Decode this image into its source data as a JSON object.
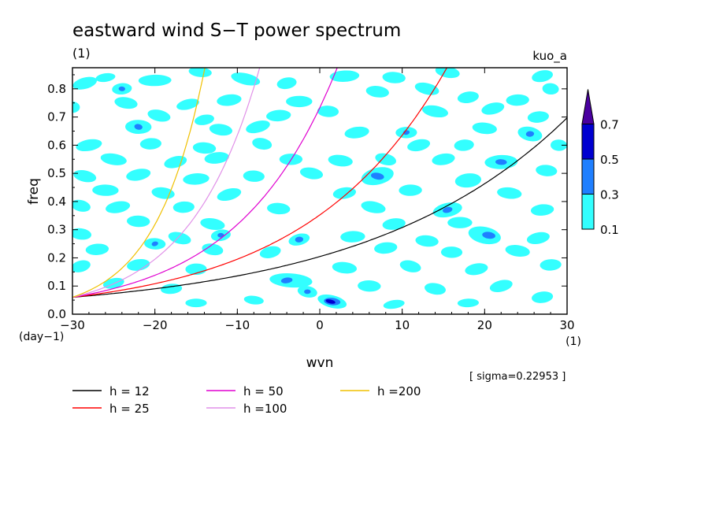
{
  "chart_data": {
    "type": "heatmap",
    "title": "eastward wind S−T power spectrum",
    "title_unit": "(1)",
    "subtitle_right": "kuo_a",
    "xlabel": "wvn",
    "xlabel_unit": "(1)",
    "ylabel": "freq",
    "ylabel_unit": "(day−1)",
    "xlim": [
      -30,
      30
    ],
    "ylim": [
      0.0,
      0.875
    ],
    "x_ticks": [
      -30,
      -20,
      -10,
      0,
      10,
      20,
      30
    ],
    "x_tick_labels": [
      "−30",
      "−20",
      "−10",
      "0",
      "10",
      "20",
      "30"
    ],
    "y_ticks": [
      0.0,
      0.1,
      0.2,
      0.3,
      0.4,
      0.5,
      0.6,
      0.7,
      0.8
    ],
    "y_tick_labels": [
      "0.0",
      "0.1",
      "0.2",
      "0.3",
      "0.4",
      "0.5",
      "0.6",
      "0.7",
      "0.8"
    ],
    "contour_levels": [
      0.1,
      0.3,
      0.5,
      0.7
    ],
    "colorbar_labels": [
      "0.1",
      "0.3",
      "0.5",
      "0.7"
    ],
    "colorbar_colors": [
      "#33ffff",
      "#1f7fff",
      "#0000d0",
      "#4a00a0"
    ],
    "sigma_text": "[ sigma=0.22953 ]",
    "dispersion_curves": [
      {
        "name": "h = 12",
        "h": 12,
        "color": "#000000"
      },
      {
        "name": "h = 25",
        "h": 25,
        "color": "#ff0000"
      },
      {
        "name": "h = 50",
        "h": 50,
        "color": "#e000d0"
      },
      {
        "name": "h =100",
        "h": 100,
        "color": "#e090e8"
      },
      {
        "name": "h =200",
        "h": 200,
        "color": "#f0c000"
      }
    ],
    "blobs": [
      {
        "x": -28.5,
        "y": 0.82,
        "rx": 1.5,
        "ry": 0.02,
        "l": 1
      },
      {
        "x": -26,
        "y": 0.84,
        "rx": 1.2,
        "ry": 0.015,
        "l": 1
      },
      {
        "x": -20,
        "y": 0.83,
        "rx": 2.0,
        "ry": 0.02,
        "l": 1
      },
      {
        "x": -14.5,
        "y": 0.86,
        "rx": 1.4,
        "ry": 0.018,
        "l": 1
      },
      {
        "x": -9,
        "y": 0.835,
        "rx": 1.8,
        "ry": 0.02,
        "l": 1
      },
      {
        "x": -4,
        "y": 0.82,
        "rx": 1.2,
        "ry": 0.02,
        "l": 1
      },
      {
        "x": 3,
        "y": 0.845,
        "rx": 1.8,
        "ry": 0.02,
        "l": 1
      },
      {
        "x": 9,
        "y": 0.84,
        "rx": 1.4,
        "ry": 0.02,
        "l": 1
      },
      {
        "x": 15.5,
        "y": 0.86,
        "rx": 1.5,
        "ry": 0.02,
        "l": 1
      },
      {
        "x": 27,
        "y": 0.845,
        "rx": 1.3,
        "ry": 0.02,
        "l": 1
      },
      {
        "x": -24,
        "y": 0.8,
        "rx": 1.2,
        "ry": 0.02,
        "l": 1
      },
      {
        "x": -24,
        "y": 0.8,
        "rx": 0.4,
        "ry": 0.008,
        "l": 2
      },
      {
        "x": -30,
        "y": 0.735,
        "rx": 0.9,
        "ry": 0.02,
        "l": 1
      },
      {
        "x": -23.5,
        "y": 0.75,
        "rx": 1.4,
        "ry": 0.02,
        "l": 1
      },
      {
        "x": -16,
        "y": 0.745,
        "rx": 1.4,
        "ry": 0.018,
        "l": 1
      },
      {
        "x": -11,
        "y": 0.76,
        "rx": 1.5,
        "ry": 0.02,
        "l": 1
      },
      {
        "x": -2.5,
        "y": 0.755,
        "rx": 1.6,
        "ry": 0.02,
        "l": 1
      },
      {
        "x": 7,
        "y": 0.79,
        "rx": 1.4,
        "ry": 0.02,
        "l": 1
      },
      {
        "x": 13,
        "y": 0.8,
        "rx": 1.5,
        "ry": 0.02,
        "l": 1
      },
      {
        "x": 18,
        "y": 0.77,
        "rx": 1.3,
        "ry": 0.02,
        "l": 1
      },
      {
        "x": 24,
        "y": 0.76,
        "rx": 1.4,
        "ry": 0.02,
        "l": 1
      },
      {
        "x": 28,
        "y": 0.8,
        "rx": 1.0,
        "ry": 0.02,
        "l": 1
      },
      {
        "x": -19.5,
        "y": 0.705,
        "rx": 1.4,
        "ry": 0.02,
        "l": 1
      },
      {
        "x": -14,
        "y": 0.69,
        "rx": 1.2,
        "ry": 0.018,
        "l": 1
      },
      {
        "x": -5,
        "y": 0.705,
        "rx": 1.5,
        "ry": 0.02,
        "l": 1
      },
      {
        "x": 1,
        "y": 0.72,
        "rx": 1.3,
        "ry": 0.02,
        "l": 1
      },
      {
        "x": 14,
        "y": 0.72,
        "rx": 1.6,
        "ry": 0.02,
        "l": 1
      },
      {
        "x": 21,
        "y": 0.73,
        "rx": 1.4,
        "ry": 0.02,
        "l": 1
      },
      {
        "x": 26.5,
        "y": 0.7,
        "rx": 1.3,
        "ry": 0.02,
        "l": 1
      },
      {
        "x": -22,
        "y": 0.665,
        "rx": 1.6,
        "ry": 0.025,
        "l": 1
      },
      {
        "x": -22,
        "y": 0.665,
        "rx": 0.5,
        "ry": 0.01,
        "l": 2
      },
      {
        "x": -12,
        "y": 0.655,
        "rx": 1.4,
        "ry": 0.02,
        "l": 1
      },
      {
        "x": -7.5,
        "y": 0.665,
        "rx": 1.5,
        "ry": 0.02,
        "l": 1
      },
      {
        "x": 4.5,
        "y": 0.645,
        "rx": 1.5,
        "ry": 0.02,
        "l": 1
      },
      {
        "x": 10.5,
        "y": 0.645,
        "rx": 1.3,
        "ry": 0.02,
        "l": 1
      },
      {
        "x": 10.5,
        "y": 0.645,
        "rx": 0.4,
        "ry": 0.008,
        "l": 2
      },
      {
        "x": 20,
        "y": 0.66,
        "rx": 1.5,
        "ry": 0.02,
        "l": 1
      },
      {
        "x": 25.5,
        "y": 0.64,
        "rx": 1.5,
        "ry": 0.025,
        "l": 1
      },
      {
        "x": 25.5,
        "y": 0.64,
        "rx": 0.5,
        "ry": 0.01,
        "l": 2
      },
      {
        "x": -28,
        "y": 0.6,
        "rx": 1.6,
        "ry": 0.02,
        "l": 1
      },
      {
        "x": -20.5,
        "y": 0.605,
        "rx": 1.3,
        "ry": 0.02,
        "l": 1
      },
      {
        "x": -14,
        "y": 0.59,
        "rx": 1.4,
        "ry": 0.02,
        "l": 1
      },
      {
        "x": -7,
        "y": 0.605,
        "rx": 1.2,
        "ry": 0.02,
        "l": 1
      },
      {
        "x": 12,
        "y": 0.6,
        "rx": 1.4,
        "ry": 0.02,
        "l": 1
      },
      {
        "x": 17.5,
        "y": 0.6,
        "rx": 1.2,
        "ry": 0.02,
        "l": 1
      },
      {
        "x": 29,
        "y": 0.6,
        "rx": 1.0,
        "ry": 0.02,
        "l": 1
      },
      {
        "x": -25,
        "y": 0.55,
        "rx": 1.6,
        "ry": 0.02,
        "l": 1
      },
      {
        "x": -17.5,
        "y": 0.54,
        "rx": 1.4,
        "ry": 0.02,
        "l": 1
      },
      {
        "x": -12.5,
        "y": 0.555,
        "rx": 1.5,
        "ry": 0.02,
        "l": 1
      },
      {
        "x": -3.5,
        "y": 0.55,
        "rx": 1.4,
        "ry": 0.02,
        "l": 1
      },
      {
        "x": 2.5,
        "y": 0.545,
        "rx": 1.5,
        "ry": 0.02,
        "l": 1
      },
      {
        "x": 8,
        "y": 0.55,
        "rx": 1.3,
        "ry": 0.02,
        "l": 1
      },
      {
        "x": 15,
        "y": 0.55,
        "rx": 1.4,
        "ry": 0.02,
        "l": 1
      },
      {
        "x": 22,
        "y": 0.54,
        "rx": 2.0,
        "ry": 0.025,
        "l": 1
      },
      {
        "x": 22,
        "y": 0.54,
        "rx": 0.7,
        "ry": 0.01,
        "l": 2
      },
      {
        "x": 27.5,
        "y": 0.51,
        "rx": 1.3,
        "ry": 0.02,
        "l": 1
      },
      {
        "x": -28.5,
        "y": 0.49,
        "rx": 1.4,
        "ry": 0.02,
        "l": 1
      },
      {
        "x": -22,
        "y": 0.495,
        "rx": 1.5,
        "ry": 0.02,
        "l": 1
      },
      {
        "x": -15,
        "y": 0.48,
        "rx": 1.6,
        "ry": 0.02,
        "l": 1
      },
      {
        "x": -8,
        "y": 0.49,
        "rx": 1.3,
        "ry": 0.02,
        "l": 1
      },
      {
        "x": -1,
        "y": 0.5,
        "rx": 1.4,
        "ry": 0.02,
        "l": 1
      },
      {
        "x": 7,
        "y": 0.49,
        "rx": 2.0,
        "ry": 0.03,
        "l": 1
      },
      {
        "x": 7,
        "y": 0.49,
        "rx": 0.8,
        "ry": 0.012,
        "l": 2
      },
      {
        "x": 18,
        "y": 0.475,
        "rx": 1.6,
        "ry": 0.025,
        "l": 1
      },
      {
        "x": -26,
        "y": 0.44,
        "rx": 1.6,
        "ry": 0.02,
        "l": 1
      },
      {
        "x": -19,
        "y": 0.43,
        "rx": 1.4,
        "ry": 0.02,
        "l": 1
      },
      {
        "x": -11,
        "y": 0.425,
        "rx": 1.5,
        "ry": 0.02,
        "l": 1
      },
      {
        "x": 3,
        "y": 0.43,
        "rx": 1.4,
        "ry": 0.02,
        "l": 1
      },
      {
        "x": 11,
        "y": 0.44,
        "rx": 1.4,
        "ry": 0.02,
        "l": 1
      },
      {
        "x": 23,
        "y": 0.43,
        "rx": 1.5,
        "ry": 0.02,
        "l": 1
      },
      {
        "x": -29,
        "y": 0.385,
        "rx": 1.2,
        "ry": 0.02,
        "l": 1
      },
      {
        "x": -24.5,
        "y": 0.38,
        "rx": 1.5,
        "ry": 0.02,
        "l": 1
      },
      {
        "x": -16.5,
        "y": 0.38,
        "rx": 1.3,
        "ry": 0.02,
        "l": 1
      },
      {
        "x": -5,
        "y": 0.375,
        "rx": 1.4,
        "ry": 0.02,
        "l": 1
      },
      {
        "x": 6.5,
        "y": 0.38,
        "rx": 1.5,
        "ry": 0.02,
        "l": 1
      },
      {
        "x": 15.5,
        "y": 0.37,
        "rx": 1.8,
        "ry": 0.025,
        "l": 1
      },
      {
        "x": 15.5,
        "y": 0.37,
        "rx": 0.6,
        "ry": 0.01,
        "l": 2
      },
      {
        "x": 27,
        "y": 0.37,
        "rx": 1.4,
        "ry": 0.02,
        "l": 1
      },
      {
        "x": -22,
        "y": 0.33,
        "rx": 1.4,
        "ry": 0.02,
        "l": 1
      },
      {
        "x": -13,
        "y": 0.32,
        "rx": 1.5,
        "ry": 0.02,
        "l": 1
      },
      {
        "x": -2.5,
        "y": 0.265,
        "rx": 1.3,
        "ry": 0.02,
        "l": 1
      },
      {
        "x": -2.5,
        "y": 0.265,
        "rx": 0.5,
        "ry": 0.01,
        "l": 2
      },
      {
        "x": 9,
        "y": 0.32,
        "rx": 1.4,
        "ry": 0.02,
        "l": 1
      },
      {
        "x": 17,
        "y": 0.325,
        "rx": 1.5,
        "ry": 0.02,
        "l": 1
      },
      {
        "x": -29,
        "y": 0.285,
        "rx": 1.3,
        "ry": 0.02,
        "l": 1
      },
      {
        "x": -17,
        "y": 0.27,
        "rx": 1.4,
        "ry": 0.02,
        "l": 1
      },
      {
        "x": -12,
        "y": 0.28,
        "rx": 1.2,
        "ry": 0.02,
        "l": 1
      },
      {
        "x": -12,
        "y": 0.28,
        "rx": 0.4,
        "ry": 0.008,
        "l": 2
      },
      {
        "x": 4,
        "y": 0.275,
        "rx": 1.5,
        "ry": 0.02,
        "l": 1
      },
      {
        "x": 13,
        "y": 0.26,
        "rx": 1.4,
        "ry": 0.02,
        "l": 1
      },
      {
        "x": 20,
        "y": 0.28,
        "rx": 2.0,
        "ry": 0.03,
        "l": 1
      },
      {
        "x": 20.5,
        "y": 0.28,
        "rx": 0.8,
        "ry": 0.012,
        "l": 2
      },
      {
        "x": 26.5,
        "y": 0.27,
        "rx": 1.4,
        "ry": 0.02,
        "l": 1
      },
      {
        "x": -27,
        "y": 0.23,
        "rx": 1.4,
        "ry": 0.02,
        "l": 1
      },
      {
        "x": -20,
        "y": 0.25,
        "rx": 1.3,
        "ry": 0.02,
        "l": 1
      },
      {
        "x": -20,
        "y": 0.25,
        "rx": 0.4,
        "ry": 0.008,
        "l": 2
      },
      {
        "x": -13,
        "y": 0.23,
        "rx": 1.3,
        "ry": 0.02,
        "l": 1
      },
      {
        "x": -6,
        "y": 0.22,
        "rx": 1.3,
        "ry": 0.02,
        "l": 1
      },
      {
        "x": 8,
        "y": 0.235,
        "rx": 1.4,
        "ry": 0.02,
        "l": 1
      },
      {
        "x": 16,
        "y": 0.22,
        "rx": 1.3,
        "ry": 0.02,
        "l": 1
      },
      {
        "x": 24,
        "y": 0.225,
        "rx": 1.5,
        "ry": 0.02,
        "l": 1
      },
      {
        "x": -29,
        "y": 0.17,
        "rx": 1.2,
        "ry": 0.02,
        "l": 1
      },
      {
        "x": -22,
        "y": 0.175,
        "rx": 1.4,
        "ry": 0.02,
        "l": 1
      },
      {
        "x": -15,
        "y": 0.16,
        "rx": 1.3,
        "ry": 0.02,
        "l": 1
      },
      {
        "x": 3,
        "y": 0.165,
        "rx": 1.5,
        "ry": 0.02,
        "l": 1
      },
      {
        "x": 11,
        "y": 0.17,
        "rx": 1.3,
        "ry": 0.02,
        "l": 1
      },
      {
        "x": 19,
        "y": 0.16,
        "rx": 1.4,
        "ry": 0.02,
        "l": 1
      },
      {
        "x": 28,
        "y": 0.175,
        "rx": 1.3,
        "ry": 0.02,
        "l": 1
      },
      {
        "x": -3.5,
        "y": 0.12,
        "rx": 2.6,
        "ry": 0.025,
        "l": 1
      },
      {
        "x": -4,
        "y": 0.12,
        "rx": 0.7,
        "ry": 0.01,
        "l": 2
      },
      {
        "x": -1.5,
        "y": 0.08,
        "rx": 1.2,
        "ry": 0.02,
        "l": 1
      },
      {
        "x": -1.5,
        "y": 0.08,
        "rx": 0.4,
        "ry": 0.008,
        "l": 2
      },
      {
        "x": -25,
        "y": 0.11,
        "rx": 1.3,
        "ry": 0.018,
        "l": 1
      },
      {
        "x": -18,
        "y": 0.09,
        "rx": 1.3,
        "ry": 0.018,
        "l": 1
      },
      {
        "x": 6,
        "y": 0.1,
        "rx": 1.4,
        "ry": 0.02,
        "l": 1
      },
      {
        "x": 14,
        "y": 0.09,
        "rx": 1.3,
        "ry": 0.02,
        "l": 1
      },
      {
        "x": 22,
        "y": 0.1,
        "rx": 1.4,
        "ry": 0.02,
        "l": 1
      },
      {
        "x": 27,
        "y": 0.06,
        "rx": 1.3,
        "ry": 0.02,
        "l": 1
      },
      {
        "x": -15,
        "y": 0.04,
        "rx": 1.3,
        "ry": 0.015,
        "l": 1
      },
      {
        "x": -8,
        "y": 0.05,
        "rx": 1.2,
        "ry": 0.015,
        "l": 1
      },
      {
        "x": 1.5,
        "y": 0.045,
        "rx": 1.8,
        "ry": 0.022,
        "l": 1
      },
      {
        "x": 1.5,
        "y": 0.045,
        "rx": 1.0,
        "ry": 0.013,
        "l": 2
      },
      {
        "x": 1.3,
        "y": 0.045,
        "rx": 0.6,
        "ry": 0.007,
        "l": 3
      },
      {
        "x": 9,
        "y": 0.035,
        "rx": 1.3,
        "ry": 0.015,
        "l": 1
      },
      {
        "x": 18,
        "y": 0.04,
        "rx": 1.3,
        "ry": 0.015,
        "l": 1
      }
    ]
  }
}
